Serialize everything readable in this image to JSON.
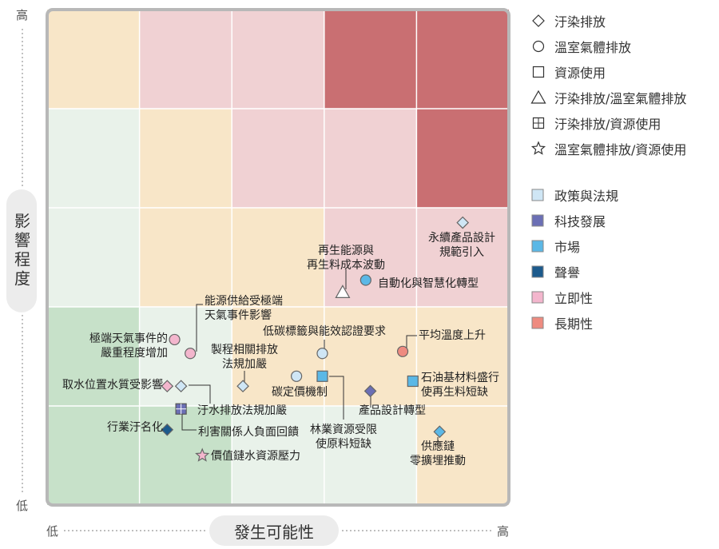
{
  "chart_data": {
    "type": "scatter",
    "xlabel": "發生可能性",
    "ylabel": "影響程度",
    "x_low": "低",
    "x_high": "高",
    "y_low": "低",
    "y_high": "高",
    "xlim": [
      0,
      5
    ],
    "ylim": [
      0,
      5
    ],
    "grid": true,
    "cell_colors": [
      [
        "#f8e6c8",
        "#f0d1d3",
        "#f0d1d3",
        "#c96f72",
        "#c96f72"
      ],
      [
        "#e9f2ea",
        "#f8e6c8",
        "#f0d1d3",
        "#f0d1d3",
        "#c96f72"
      ],
      [
        "#e9f2ea",
        "#f8e6c8",
        "#f8e6c8",
        "#f0d1d3",
        "#f0d1d3"
      ],
      [
        "#c7e1c9",
        "#e9f2ea",
        "#f8e6c8",
        "#f8e6c8",
        "#f8e6c8"
      ],
      [
        "#c7e1c9",
        "#c7e1c9",
        "#e9f2ea",
        "#e9f2ea",
        "#f8e6c8"
      ]
    ],
    "legend_shapes": [
      {
        "shape": "diamond",
        "label": "汙染排放"
      },
      {
        "shape": "circle",
        "label": "溫室氣體排放"
      },
      {
        "shape": "square",
        "label": "資源使用"
      },
      {
        "shape": "triangle",
        "label": "汙染排放/溫室氣體排放"
      },
      {
        "shape": "square-cross",
        "label": "汙染排放/資源使用"
      },
      {
        "shape": "star",
        "label": "溫室氣體排放/資源使用"
      }
    ],
    "legend_colors": [
      {
        "color": "#cfe6f5",
        "label": "政策與法規"
      },
      {
        "color": "#6b6fb5",
        "label": "科技發展"
      },
      {
        "color": "#5bb8e6",
        "label": "市場"
      },
      {
        "color": "#1c5a8c",
        "label": "聲譽"
      },
      {
        "color": "#f3b6cd",
        "label": "立即性"
      },
      {
        "color": "#ee8b80",
        "label": "長期性"
      }
    ],
    "points": [
      {
        "label": [
          "永續產品設計",
          "規範引入"
        ],
        "x": 4.5,
        "y": 2.85,
        "shape": "diamond",
        "color": "#cfe6f5"
      },
      {
        "label": [
          "再生能源與",
          "再生料成本波動"
        ],
        "x": 3.2,
        "y": 2.15,
        "shape": "triangle",
        "color": "#ffffff"
      },
      {
        "label": [
          "自動化與智慧化轉型"
        ],
        "x": 3.45,
        "y": 2.27,
        "shape": "circle",
        "color": "#5bb8e6"
      },
      {
        "label": [
          "能源供給受極端",
          "天氣事件影響"
        ],
        "x": 1.55,
        "y": 1.53,
        "shape": "circle",
        "color": "#f3b6cd"
      },
      {
        "label": [
          "極端天氣事件的",
          "嚴重程度增加"
        ],
        "x": 1.38,
        "y": 1.67,
        "shape": "circle",
        "color": "#f3b6cd"
      },
      {
        "label": [
          "製程相關排放",
          "法規加嚴"
        ],
        "x": 2.12,
        "y": 1.2,
        "shape": "diamond",
        "color": "#cfe6f5"
      },
      {
        "label": [
          "低碳標籤與能效認證要求"
        ],
        "x": 2.98,
        "y": 1.53,
        "shape": "circle",
        "color": "#cfe6f5"
      },
      {
        "label": [
          "平均溫度上升"
        ],
        "x": 3.85,
        "y": 1.55,
        "shape": "circle",
        "color": "#ee8b80"
      },
      {
        "label": [
          "取水位置水質受影響"
        ],
        "x": 1.3,
        "y": 1.2,
        "shape": "diamond",
        "color": "#f3b6cd"
      },
      {
        "label": [
          "取水位置水質受影響"
        ],
        "x": 1.45,
        "y": 1.2,
        "shape": "diamond",
        "color": "#cfe6f5"
      },
      {
        "label": [
          "碳定價機制"
        ],
        "x": 2.7,
        "y": 1.3,
        "shape": "circle",
        "color": "#cfe6f5"
      },
      {
        "label": [
          "林業資源受限",
          "使原料短缺"
        ],
        "x": 2.98,
        "y": 1.3,
        "shape": "square",
        "color": "#5bb8e6"
      },
      {
        "label": [
          "產品設計轉型"
        ],
        "x": 3.5,
        "y": 1.15,
        "shape": "diamond",
        "color": "#6b6fb5"
      },
      {
        "label": [
          "石油基材料盛行",
          "使再生料短缺"
        ],
        "x": 3.96,
        "y": 1.25,
        "shape": "square",
        "color": "#5bb8e6"
      },
      {
        "label": [
          "汙水排放法規加嚴"
        ],
        "x": 1.45,
        "y": 0.97,
        "shape": "square-cross",
        "color": "#6b6fb5"
      },
      {
        "label": [
          "利害關係人負面回饋"
        ],
        "x": 1.45,
        "y": 0.97,
        "shape": "square-cross",
        "color": "#6b6fb5"
      },
      {
        "label": [
          "行業汙名化"
        ],
        "x": 1.3,
        "y": 0.76,
        "shape": "diamond",
        "color": "#1c5a8c"
      },
      {
        "label": [
          "供應鏈",
          "零擴埋推動"
        ],
        "x": 4.25,
        "y": 0.74,
        "shape": "diamond",
        "color": "#5bb8e6"
      },
      {
        "label": [
          "價值鏈水資源壓力"
        ],
        "x": 1.68,
        "y": 0.5,
        "shape": "star",
        "color": "#f3b6cd"
      }
    ]
  }
}
